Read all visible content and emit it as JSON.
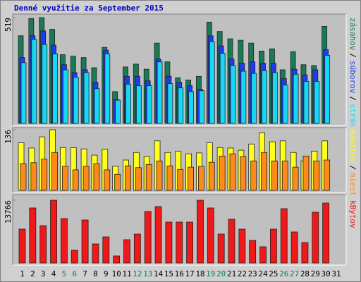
{
  "chart_data": {
    "type": "bar",
    "title": "Denné využitie za September 2015",
    "categories": [
      "1",
      "2",
      "3",
      "4",
      "5",
      "6",
      "7",
      "8",
      "9",
      "10",
      "11",
      "12",
      "13",
      "14",
      "15",
      "16",
      "17",
      "18",
      "19",
      "20",
      "21",
      "22",
      "23",
      "24",
      "25",
      "26",
      "27",
      "28",
      "29",
      "30",
      "31"
    ],
    "category_colors": [
      "#000000",
      "#000000",
      "#000000",
      "#000000",
      "#00805c",
      "#00805c",
      "#000000",
      "#000000",
      "#000000",
      "#000000",
      "#000000",
      "#00805c",
      "#00805c",
      "#000000",
      "#000000",
      "#000000",
      "#000000",
      "#000000",
      "#00805c",
      "#00805c",
      "#000000",
      "#000000",
      "#000000",
      "#000000",
      "#000000",
      "#00805c",
      "#00805c",
      "#000000",
      "#000000",
      "#000000",
      "#000000"
    ],
    "legend_separator": "/",
    "panels": [
      {
        "ylim": [
          0,
          519
        ],
        "yticks": [
          519
        ],
        "series": [
          {
            "name": "zásahov",
            "color": "#1a7a55",
            "values": [
              430,
              515,
              519,
              462,
              337,
              330,
              323,
              273,
              373,
              156,
              277,
              291,
              266,
              394,
              302,
              224,
              213,
              231,
              497,
              451,
              415,
              408,
              394,
              355,
              366,
              263,
              352,
              288,
              284,
              476,
              0
            ]
          },
          {
            "name": "súborov",
            "color": "#1b3cf0",
            "values": [
              323,
              430,
              454,
              384,
              288,
              249,
              263,
              202,
              359,
              117,
              231,
              231,
              209,
              316,
              231,
              202,
              185,
              167,
              430,
              380,
              316,
              295,
              302,
              295,
              295,
              220,
              266,
              238,
              263,
              362,
              0
            ]
          },
          {
            "name": "strán",
            "color": "#16d8f5",
            "values": [
              298,
              412,
              387,
              341,
              263,
              227,
              249,
              170,
              341,
              114,
              192,
              185,
              185,
              302,
              195,
              174,
              156,
              160,
              401,
              344,
              284,
              256,
              245,
              259,
              249,
              188,
              241,
              206,
              206,
              334,
              0
            ]
          }
        ]
      },
      {
        "ylim": [
          0,
          136
        ],
        "yticks": [
          136
        ],
        "series": [
          {
            "name": "návštev",
            "color": "#ffff1a",
            "values": [
              107,
              95,
              120,
              136,
              96,
              96,
              93,
              79,
              92,
              54,
              68,
              85,
              76,
              111,
              85,
              88,
              82,
              84,
              107,
              96,
              95,
              90,
              104,
              129,
              109,
              111,
              85,
              66,
              88,
              111,
              0
            ]
          },
          {
            "name": "miest",
            "color": "#ff8a1a",
            "values": [
              60,
              62,
              70,
              85,
              54,
              46,
              54,
              60,
              46,
              36,
              55,
              51,
              58,
              66,
              55,
              47,
              52,
              54,
              63,
              77,
              82,
              76,
              66,
              85,
              66,
              66,
              52,
              77,
              66,
              68,
              0
            ]
          }
        ]
      },
      {
        "ylim": [
          0,
          13766
        ],
        "yticks": [
          13766
        ],
        "series": [
          {
            "name": "kBytov",
            "color": "#f01818",
            "values": [
              7426,
              12067,
              8199,
              13766,
              9744,
              2785,
              9435,
              4177,
              5724,
              1547,
              5105,
              6343,
              11293,
              12376,
              8972,
              8972,
              8972,
              13766,
              12067,
              6343,
              9590,
              7426,
              4951,
              3559,
              7426,
              11912,
              6807,
              4487,
              11138,
              13147,
              0
            ]
          }
        ]
      }
    ]
  }
}
